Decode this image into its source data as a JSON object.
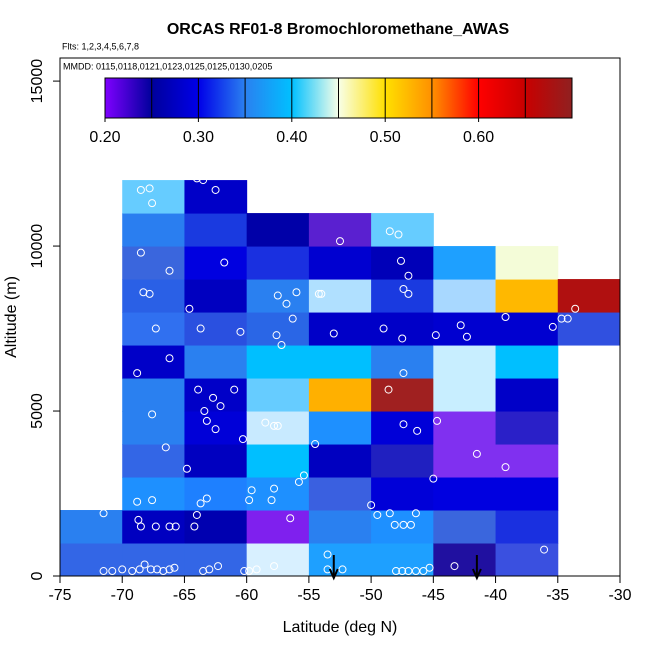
{
  "chart_data": {
    "type": "heatmap",
    "title": "ORCAS RF01-8 Bromochloromethane_AWAS",
    "subtitle": "Flts: 1,2,3,4,5,6,7,8",
    "annotation": "MMDD: 0115,0118,0121,0123,0125,0125,0130,0205",
    "x_label": "Latitude (deg N)",
    "y_label": "Altitude (m)",
    "xlim": [
      -75,
      -30
    ],
    "xticks": [
      -75,
      -70,
      -65,
      -60,
      -55,
      -50,
      -45,
      -40,
      -35,
      -30
    ],
    "ylim": [
      0,
      15700
    ],
    "yticks": [
      0,
      5000,
      10000,
      15000
    ],
    "cell_width": 5,
    "cell_height": 1000,
    "cells": [
      {
        "lat": -75,
        "alt": 0,
        "value": 0.33,
        "color": "#3366e6"
      },
      {
        "lat": -75,
        "alt": 1000,
        "value": 0.35,
        "color": "#2a80f0"
      },
      {
        "lat": -70,
        "alt": 0,
        "value": 0.33,
        "color": "#3366e6"
      },
      {
        "lat": -70,
        "alt": 1000,
        "value": 0.28,
        "color": "#0000c0"
      },
      {
        "lat": -70,
        "alt": 2000,
        "value": 0.37,
        "color": "#1e90ff"
      },
      {
        "lat": -70,
        "alt": 3000,
        "value": 0.33,
        "color": "#3366e6"
      },
      {
        "lat": -70,
        "alt": 4000,
        "value": 0.35,
        "color": "#2a80f0"
      },
      {
        "lat": -70,
        "alt": 5000,
        "value": 0.35,
        "color": "#2a80f0"
      },
      {
        "lat": -70,
        "alt": 6000,
        "value": 0.28,
        "color": "#0000c8"
      },
      {
        "lat": -70,
        "alt": 7000,
        "value": 0.34,
        "color": "#3070f0"
      },
      {
        "lat": -70,
        "alt": 8000,
        "value": 0.33,
        "color": "#2a60e6"
      },
      {
        "lat": -70,
        "alt": 9000,
        "value": 0.33,
        "color": "#3a66dd"
      },
      {
        "lat": -70,
        "alt": 10000,
        "value": 0.35,
        "color": "#2a7ef0"
      },
      {
        "lat": -70,
        "alt": 11000,
        "value": 0.41,
        "color": "#66ccff"
      },
      {
        "lat": -65,
        "alt": 0,
        "value": 0.33,
        "color": "#3366e6"
      },
      {
        "lat": -65,
        "alt": 1000,
        "value": 0.27,
        "color": "#0000b0"
      },
      {
        "lat": -65,
        "alt": 2000,
        "value": 0.36,
        "color": "#1e80ff"
      },
      {
        "lat": -65,
        "alt": 3000,
        "value": 0.28,
        "color": "#0000c0"
      },
      {
        "lat": -65,
        "alt": 4000,
        "value": 0.29,
        "color": "#0000d8"
      },
      {
        "lat": -65,
        "alt": 5000,
        "value": 0.28,
        "color": "#0000c8"
      },
      {
        "lat": -65,
        "alt": 6000,
        "value": 0.35,
        "color": "#2a80f0"
      },
      {
        "lat": -65,
        "alt": 7000,
        "value": 0.32,
        "color": "#2a50e0"
      },
      {
        "lat": -65,
        "alt": 8000,
        "value": 0.28,
        "color": "#0000c0"
      },
      {
        "lat": -65,
        "alt": 9000,
        "value": 0.3,
        "color": "#0000e0"
      },
      {
        "lat": -65,
        "alt": 10000,
        "value": 0.31,
        "color": "#1a3ae0"
      },
      {
        "lat": -65,
        "alt": 11000,
        "value": 0.28,
        "color": "#0000c8"
      },
      {
        "lat": -60,
        "alt": 0,
        "value": 0.44,
        "color": "#d8f0ff"
      },
      {
        "lat": -60,
        "alt": 1000,
        "value": 0.22,
        "color": "#7f20ee"
      },
      {
        "lat": -60,
        "alt": 2000,
        "value": 0.37,
        "color": "#1e90ff"
      },
      {
        "lat": -60,
        "alt": 3000,
        "value": 0.39,
        "color": "#00bfff"
      },
      {
        "lat": -60,
        "alt": 4000,
        "value": 0.44,
        "color": "#c8eaff"
      },
      {
        "lat": -60,
        "alt": 5000,
        "value": 0.41,
        "color": "#66ccff"
      },
      {
        "lat": -60,
        "alt": 6000,
        "value": 0.39,
        "color": "#00bfff"
      },
      {
        "lat": -60,
        "alt": 7000,
        "value": 0.33,
        "color": "#2a66e6"
      },
      {
        "lat": -60,
        "alt": 8000,
        "value": 0.35,
        "color": "#2a80f0"
      },
      {
        "lat": -60,
        "alt": 9000,
        "value": 0.31,
        "color": "#1a30e0"
      },
      {
        "lat": -60,
        "alt": 10000,
        "value": 0.26,
        "color": "#0000a8"
      },
      {
        "lat": -55,
        "alt": 0,
        "value": 0.38,
        "color": "#1ea0ff"
      },
      {
        "lat": -55,
        "alt": 1000,
        "value": 0.35,
        "color": "#2a80f0"
      },
      {
        "lat": -55,
        "alt": 2000,
        "value": 0.33,
        "color": "#3a60e0"
      },
      {
        "lat": -55,
        "alt": 3000,
        "value": 0.28,
        "color": "#0000c0"
      },
      {
        "lat": -55,
        "alt": 4000,
        "value": 0.37,
        "color": "#1e90ff"
      },
      {
        "lat": -55,
        "alt": 5000,
        "value": 0.54,
        "color": "#ffb000"
      },
      {
        "lat": -55,
        "alt": 6000,
        "value": 0.39,
        "color": "#00bfff"
      },
      {
        "lat": -55,
        "alt": 7000,
        "value": 0.28,
        "color": "#0000c8"
      },
      {
        "lat": -55,
        "alt": 8000,
        "value": 0.43,
        "color": "#b0e0ff"
      },
      {
        "lat": -55,
        "alt": 9000,
        "value": 0.29,
        "color": "#0000d0"
      },
      {
        "lat": -55,
        "alt": 10000,
        "value": 0.23,
        "color": "#5a20d0"
      },
      {
        "lat": -50,
        "alt": 0,
        "value": 0.38,
        "color": "#1ea0ff"
      },
      {
        "lat": -50,
        "alt": 1000,
        "value": 0.37,
        "color": "#1e90ff"
      },
      {
        "lat": -50,
        "alt": 2000,
        "value": 0.29,
        "color": "#0000d8"
      },
      {
        "lat": -50,
        "alt": 3000,
        "value": 0.26,
        "color": "#2020c0"
      },
      {
        "lat": -50,
        "alt": 4000,
        "value": 0.29,
        "color": "#0000d8"
      },
      {
        "lat": -50,
        "alt": 5000,
        "value": 0.68,
        "color": "#a02020"
      },
      {
        "lat": -50,
        "alt": 6000,
        "value": 0.35,
        "color": "#2a80f0"
      },
      {
        "lat": -50,
        "alt": 7000,
        "value": 0.28,
        "color": "#0000c8"
      },
      {
        "lat": -50,
        "alt": 8000,
        "value": 0.31,
        "color": "#1a3ae0"
      },
      {
        "lat": -50,
        "alt": 9000,
        "value": 0.27,
        "color": "#0000b8"
      },
      {
        "lat": -50,
        "alt": 10000,
        "value": 0.41,
        "color": "#66ccff"
      },
      {
        "lat": -45,
        "alt": 0,
        "value": 0.25,
        "color": "#2010a0"
      },
      {
        "lat": -45,
        "alt": 1000,
        "value": 0.33,
        "color": "#3a66dd"
      },
      {
        "lat": -45,
        "alt": 2000,
        "value": 0.3,
        "color": "#0000e0"
      },
      {
        "lat": -45,
        "alt": 3000,
        "value": 0.22,
        "color": "#8030f0"
      },
      {
        "lat": -45,
        "alt": 4000,
        "value": 0.22,
        "color": "#8030f0"
      },
      {
        "lat": -45,
        "alt": 5000,
        "value": 0.44,
        "color": "#c8eeff"
      },
      {
        "lat": -45,
        "alt": 6000,
        "value": 0.44,
        "color": "#c8eeff"
      },
      {
        "lat": -45,
        "alt": 7000,
        "value": 0.29,
        "color": "#0000d0"
      },
      {
        "lat": -45,
        "alt": 8000,
        "value": 0.43,
        "color": "#a8d8ff"
      },
      {
        "lat": -45,
        "alt": 9000,
        "value": 0.38,
        "color": "#1ea0ff"
      },
      {
        "lat": -40,
        "alt": 0,
        "value": 0.32,
        "color": "#3a50e0"
      },
      {
        "lat": -40,
        "alt": 1000,
        "value": 0.31,
        "color": "#1a30e0"
      },
      {
        "lat": -40,
        "alt": 2000,
        "value": 0.3,
        "color": "#0000e0"
      },
      {
        "lat": -40,
        "alt": 3000,
        "value": 0.22,
        "color": "#8030f0"
      },
      {
        "lat": -40,
        "alt": 4000,
        "value": 0.25,
        "color": "#2a20c8"
      },
      {
        "lat": -40,
        "alt": 5000,
        "value": 0.28,
        "color": "#0000c8"
      },
      {
        "lat": -40,
        "alt": 6000,
        "value": 0.39,
        "color": "#00bfff"
      },
      {
        "lat": -40,
        "alt": 7000,
        "value": 0.29,
        "color": "#0000d0"
      },
      {
        "lat": -40,
        "alt": 8000,
        "value": 0.53,
        "color": "#ffb800"
      },
      {
        "lat": -40,
        "alt": 9000,
        "value": 0.46,
        "color": "#f4fcd8"
      },
      {
        "lat": -35,
        "alt": 7000,
        "value": 0.32,
        "color": "#3050e0"
      },
      {
        "lat": -35,
        "alt": 8000,
        "value": 0.67,
        "color": "#b01010"
      }
    ],
    "points": {
      "x": [
        -68.5,
        -67.8,
        -67.6,
        -64,
        -63.5,
        -62.5,
        -52.5,
        -48.5,
        -47.8,
        -47.6,
        -47,
        -68.5,
        -66.2,
        -61.8,
        -68.3,
        -67.8,
        -64.6,
        -57.5,
        -56.8,
        -56,
        -54.2,
        -54,
        -47.4,
        -47,
        -34.7,
        -34.2,
        -33.6,
        -35.4,
        -39.2,
        -42.8,
        -42.3,
        -67.3,
        -63.7,
        -60.5,
        -56.3,
        -57.6,
        -57.2,
        -53,
        -49,
        -47.5,
        -44.8,
        -68.8,
        -66.2,
        -63.9,
        -61,
        -62.7,
        -62.1,
        -63.4,
        -48.6,
        -47.4,
        -67.6,
        -63.2,
        -62.5,
        -60.3,
        -58.5,
        -57.8,
        -57.5,
        -54.5,
        -70.5,
        -66.5,
        -64.8,
        -47.4,
        -46.3,
        -44.7,
        -41.5,
        -39.2,
        -55.4,
        -34.2,
        -68.8,
        -67.6,
        -63.7,
        -63.2,
        -59.8,
        -59.6,
        -58,
        -57.8,
        -55.8,
        -50,
        -49.5,
        -48.5,
        -46.4,
        -45,
        -71.5,
        -68.7,
        -68.5,
        -67.3,
        -66.2,
        -65.7,
        -64,
        -64.2,
        -56.5,
        -48.1,
        -47.4,
        -46.8,
        -53.5,
        -36.1,
        -43.3,
        -71.5,
        -70.8,
        -70,
        -69.2,
        -68.6,
        -68.2,
        -67.7,
        -67.2,
        -66.7,
        -66.2,
        -65.8,
        -63.5,
        -63,
        -62.3,
        -60.2,
        -59.8,
        -59.2,
        -57.8,
        -53.5,
        -52.3,
        -48,
        -47.5,
        -47,
        -46.4,
        -45.8,
        -45.3
      ],
      "y": [
        11700,
        11750,
        11300,
        12050,
        12000,
        11700,
        10150,
        10450,
        10350,
        9550,
        9100,
        9800,
        9250,
        9500,
        8600,
        8550,
        8100,
        8500,
        8250,
        8600,
        8550,
        8550,
        8700,
        8550,
        7800,
        7800,
        8100,
        7550,
        7850,
        7600,
        7250,
        7500,
        7500,
        7400,
        7800,
        7300,
        7000,
        7350,
        7500,
        7200,
        7300,
        6150,
        6600,
        5650,
        5650,
        5400,
        5150,
        5000,
        5650,
        6150,
        4900,
        4700,
        4450,
        4150,
        4650,
        4550,
        4550,
        4000,
        4150,
        3900,
        3250,
        4600,
        4400,
        4700,
        3700,
        3300,
        3050,
        2350,
        2250,
        2300,
        2200,
        2350,
        2300,
        2600,
        2300,
        2650,
        2850,
        2150,
        1850,
        1900,
        1900,
        2950,
        1900,
        1700,
        1500,
        1500,
        1500,
        1500,
        1850,
        1500,
        1750,
        1550,
        1550,
        1550,
        650,
        800,
        300,
        150,
        150,
        200,
        150,
        200,
        350,
        200,
        200,
        150,
        200,
        250,
        150,
        200,
        300,
        150,
        150,
        200,
        300,
        200,
        200,
        150,
        150,
        150,
        150,
        150,
        250
      ]
    },
    "arrows": [
      -53,
      -41.5
    ],
    "colorbar": {
      "lim": [
        0.2,
        0.7
      ],
      "ticks": [
        {
          "value": 0.2,
          "label": "0.20"
        },
        {
          "value": 0.3,
          "label": "0.30"
        },
        {
          "value": 0.4,
          "label": "0.40"
        },
        {
          "value": 0.5,
          "label": "0.50"
        },
        {
          "value": 0.6,
          "label": "0.60"
        }
      ],
      "breaks": [
        0.25,
        0.3,
        0.35,
        0.4,
        0.45,
        0.5,
        0.55,
        0.6,
        0.65
      ],
      "colors": [
        "#7f00ff",
        "#00009c",
        "#0000e8",
        "#2a80f0",
        "#00c0ff",
        "#f8ffe8",
        "#ffe000",
        "#ff9000",
        "#ff0000",
        "#c80000",
        "#902020"
      ]
    }
  }
}
